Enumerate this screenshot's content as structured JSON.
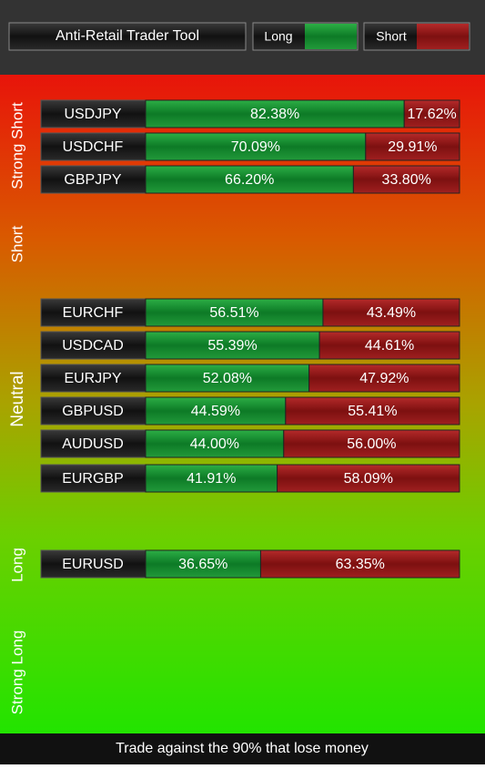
{
  "header": {
    "title": "Anti-Retail Trader Tool",
    "legend": {
      "long": "Long",
      "short": "Short"
    }
  },
  "zones": [
    "Strong Short",
    "Short",
    "Neutral",
    "Long",
    "Strong Long"
  ],
  "rows": [
    {
      "pair": "USDJPY",
      "long": 82.38,
      "long_label": "82.38%",
      "short": 17.62,
      "short_label": "17.62%"
    },
    {
      "pair": "USDCHF",
      "long": 70.09,
      "long_label": "70.09%",
      "short": 29.91,
      "short_label": "29.91%"
    },
    {
      "pair": "GBPJPY",
      "long": 66.2,
      "long_label": "66.20%",
      "short": 33.8,
      "short_label": "33.80%"
    },
    {
      "pair": "EURCHF",
      "long": 56.51,
      "long_label": "56.51%",
      "short": 43.49,
      "short_label": "43.49%"
    },
    {
      "pair": "USDCAD",
      "long": 55.39,
      "long_label": "55.39%",
      "short": 44.61,
      "short_label": "44.61%"
    },
    {
      "pair": "EURJPY",
      "long": 52.08,
      "long_label": "52.08%",
      "short": 47.92,
      "short_label": "47.92%"
    },
    {
      "pair": "GBPUSD",
      "long": 44.59,
      "long_label": "44.59%",
      "short": 55.41,
      "short_label": "55.41%"
    },
    {
      "pair": "AUDUSD",
      "long": 44.0,
      "long_label": "44.00%",
      "short": 56.0,
      "short_label": "56.00%"
    },
    {
      "pair": "EURGBP",
      "long": 41.91,
      "long_label": "41.91%",
      "short": 58.09,
      "short_label": "58.09%"
    },
    {
      "pair": "EURUSD",
      "long": 36.65,
      "long_label": "36.65%",
      "short": 63.35,
      "short_label": "63.35%"
    }
  ],
  "footer": "Trade against the 90% that lose money"
}
